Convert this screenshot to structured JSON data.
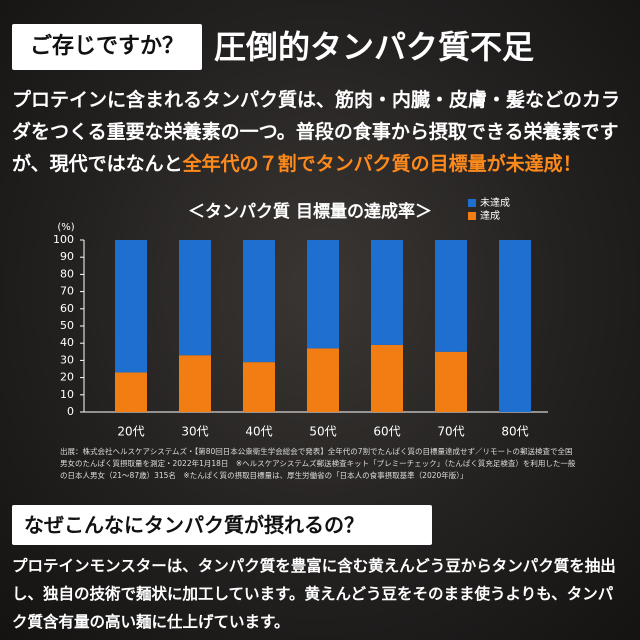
{
  "header": {
    "tag": "ご存じですか？",
    "title": "圧倒的タンパク質不足"
  },
  "intro": [
    "プロテインに含まれるタンパク質は、筋肉・内臓・皮膚・髪などのカラダをつくる重要な栄養素の一つ。普段の食事から摂取できる栄養素ですが、現代ではなんと",
    "全年代の７割でタンパク質の目標量が未達成！"
  ],
  "chart_data": {
    "type": "stacked_bar",
    "title": "＜タンパク質 目標量の達成率＞",
    "y_unit": "(%)",
    "categories": [
      "20代",
      "30代",
      "40代",
      "50代",
      "60代",
      "70代",
      "80代"
    ],
    "series": [
      {
        "name": "未達成",
        "color": "#1f6fd1",
        "values": [
          77,
          67,
          71,
          63,
          61,
          65,
          100
        ]
      },
      {
        "name": "達成",
        "color": "#f27d12",
        "values": [
          23,
          33,
          29,
          37,
          39,
          35,
          0
        ]
      }
    ],
    "ylim": [
      0,
      100
    ],
    "yticks": [
      0,
      10,
      20,
      30,
      40,
      50,
      60,
      70,
      80,
      90,
      100
    ],
    "grid": false
  },
  "note": "出展：株式会社ヘルスケアシステムズ・【第80回日本公衆衛生学会総会で発表】全年代の7割でたんぱく質の目標量達成せず／リモートの郵送検査で全国男女のたんぱく質摂取量を測定・2022年1月18日　※ヘルスケアシステムズ郵送検査キット「プレミーチェック」（たんぱく質充足検査）を利用した一般の日本人男女（21～87歳）315名　※たんぱく質の摂取目標量は、厚生労働省の「日本人の食事摂取基準（2020年版）」",
  "section2": {
    "tag": "なぜこんなにタンパク質が摂れるの？",
    "text": "プロテインモンスターは、タンパク質を豊富に含む黄えんどう豆からタンパク質を抽出し、独自の技術で麺状に加工しています。黄えんどう豆をそのまま使うよりも、タンパク質含有量の高い麺に仕上げています。"
  }
}
